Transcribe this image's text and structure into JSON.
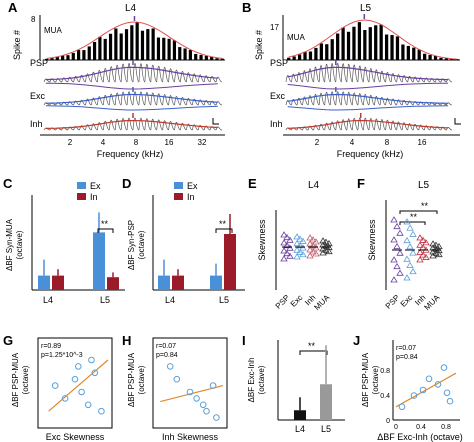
{
  "panels": {
    "A": {
      "letter": "A",
      "title": "L4",
      "ylabel": "Spike #",
      "ytick": "8",
      "mua": "MUA",
      "psp": "PSP",
      "exc": "Exc",
      "inh": "Inh",
      "xticks": [
        "2",
        "4",
        "8",
        "16",
        "32"
      ],
      "xlabel": "Frequency (kHz)"
    },
    "B": {
      "letter": "B",
      "title": "L5",
      "ylabel": "Spike #",
      "ytick": "17",
      "mua": "MUA",
      "psp": "PSP",
      "exc": "Exc",
      "inh": "Inh",
      "xticks": [
        "2",
        "4",
        "8",
        "16"
      ],
      "xlabel": "Frequency (kHz)"
    },
    "C": {
      "letter": "C",
      "ylabel": "ΔBF Syn-MUA\n(octave)",
      "legend_ex": "Ex",
      "legend_in": "In",
      "sig": "**",
      "xlabels": [
        "L4",
        "L5"
      ]
    },
    "D": {
      "letter": "D",
      "ylabel": "ΔBF Syn-PSP\n(octave)",
      "legend_ex": "Ex",
      "legend_in": "In",
      "sig": "**",
      "xlabels": [
        "L4",
        "L5"
      ]
    },
    "E": {
      "letter": "E",
      "title": "L4",
      "ylabel": "Skewness",
      "xlabels": [
        "PSP",
        "Exc",
        "Inh",
        "MUA"
      ]
    },
    "F": {
      "letter": "F",
      "title": "L5",
      "ylabel": "Skewness",
      "sig1": "**",
      "sig2": "**",
      "xlabels": [
        "PSP",
        "Exc",
        "Inh",
        "MUA"
      ]
    },
    "G": {
      "letter": "G",
      "ylabel": "ΔBF PSP-MUA\n(octave)",
      "xlabel": "Exc Skewness",
      "stat1": "r=0.89",
      "stat2": "p=1.25*10^-3"
    },
    "H": {
      "letter": "H",
      "ylabel": "ΔBF PSP-MUA\n(octave)",
      "xlabel": "Inh Skewness",
      "stat1": "r=0.07",
      "stat2": "p=0.84"
    },
    "I": {
      "letter": "I",
      "ylabel": "ΔBF Exc-Inh\n(octave)",
      "sig": "**",
      "xlabels": [
        "L4",
        "L5"
      ]
    },
    "J": {
      "letter": "J",
      "ylabel": "ΔBF PSP-MUA\n(octave)",
      "xlabel": "ΔBF Exc-Inh (octave)",
      "stat1": "r=0.07",
      "stat2": "p=0.84",
      "xticks": [
        "0",
        "0.4",
        "0.8"
      ],
      "yticks": [
        "0",
        "0.4",
        "0.8"
      ]
    }
  },
  "colors": {
    "ex": "#4a90d9",
    "in": "#9b1b2a",
    "psp": "#6a3fa0",
    "exc": "#3a5fcd",
    "inh": "#c0392b",
    "fit": "#e08a2c",
    "point": "#5aa0d8",
    "l4bar": "#111111",
    "l5bar": "#999999"
  },
  "chart_data": [
    {
      "type": "bar",
      "panel": "C",
      "categories": [
        "L4",
        "L5"
      ],
      "series": [
        {
          "name": "Ex",
          "values": [
            0.18,
            0.72
          ],
          "errors": [
            0.2,
            0.25
          ]
        },
        {
          "name": "In",
          "values": [
            0.18,
            0.16
          ],
          "errors": [
            0.08,
            0.06
          ]
        }
      ]
    },
    {
      "type": "bar",
      "panel": "D",
      "categories": [
        "L4",
        "L5"
      ],
      "series": [
        {
          "name": "Ex",
          "values": [
            0.18,
            0.18
          ],
          "errors": [
            0.2,
            0.15
          ]
        },
        {
          "name": "In",
          "values": [
            0.18,
            0.7
          ],
          "errors": [
            0.08,
            0.25
          ]
        }
      ]
    },
    {
      "type": "bar",
      "panel": "I",
      "categories": [
        "L4",
        "L5"
      ],
      "values": [
        0.15,
        0.55
      ],
      "errors": [
        0.2,
        0.6
      ]
    },
    {
      "type": "scatter",
      "panel": "G",
      "points": [
        [
          0.2,
          0.6
        ],
        [
          0.35,
          0.4
        ],
        [
          0.5,
          0.7
        ],
        [
          0.6,
          0.5
        ],
        [
          0.7,
          0.3
        ],
        [
          0.8,
          0.8
        ],
        [
          0.9,
          0.2
        ],
        [
          0.55,
          0.9
        ],
        [
          0.75,
          1.0
        ]
      ],
      "fit": [
        [
          0.1,
          0.2
        ],
        [
          1.0,
          1.0
        ]
      ]
    },
    {
      "type": "scatter",
      "panel": "H",
      "points": [
        [
          0.2,
          0.9
        ],
        [
          0.3,
          0.7
        ],
        [
          0.5,
          0.5
        ],
        [
          0.6,
          0.4
        ],
        [
          0.7,
          0.3
        ],
        [
          0.75,
          0.2
        ],
        [
          0.85,
          0.6
        ],
        [
          0.9,
          0.1
        ]
      ],
      "fit": [
        [
          0.05,
          0.35
        ],
        [
          1.0,
          0.6
        ]
      ]
    },
    {
      "type": "scatter",
      "panel": "J",
      "points": [
        [
          0.1,
          0.2
        ],
        [
          0.3,
          0.4
        ],
        [
          0.45,
          0.5
        ],
        [
          0.55,
          0.7
        ],
        [
          0.7,
          0.6
        ],
        [
          0.8,
          0.9
        ],
        [
          0.85,
          0.45
        ],
        [
          0.9,
          0.3
        ]
      ],
      "fit": [
        [
          0.0,
          0.2
        ],
        [
          1.0,
          0.8
        ]
      ]
    }
  ]
}
